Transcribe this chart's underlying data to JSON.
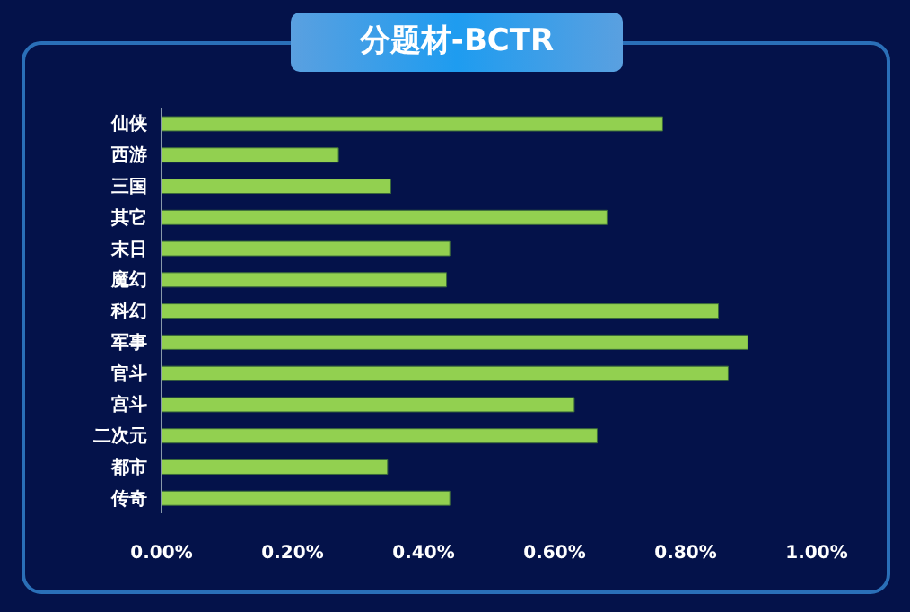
{
  "chart_data": {
    "type": "bar",
    "orientation": "horizontal",
    "title": "分题材-BCTR",
    "categories": [
      "仙侠",
      "西游",
      "三国",
      "其它",
      "末日",
      "魔幻",
      "科幻",
      "军事",
      "官斗",
      "宫斗",
      "二次元",
      "都市",
      "传奇"
    ],
    "values": [
      0.765,
      0.27,
      0.35,
      0.68,
      0.44,
      0.435,
      0.85,
      0.895,
      0.865,
      0.63,
      0.665,
      0.345,
      0.44
    ],
    "color": "#92d050",
    "xlim": [
      0,
      1
    ],
    "xticks": [
      {
        "value": 0,
        "label": "0.00%"
      },
      {
        "value": 0.2,
        "label": "0.20%"
      },
      {
        "value": 0.4,
        "label": "0.40%"
      },
      {
        "value": 0.6,
        "label": "0.60%"
      },
      {
        "value": 0.8,
        "label": "0.80%"
      },
      {
        "value": 1,
        "label": "1.00%"
      }
    ],
    "grid": false,
    "legend": false
  }
}
